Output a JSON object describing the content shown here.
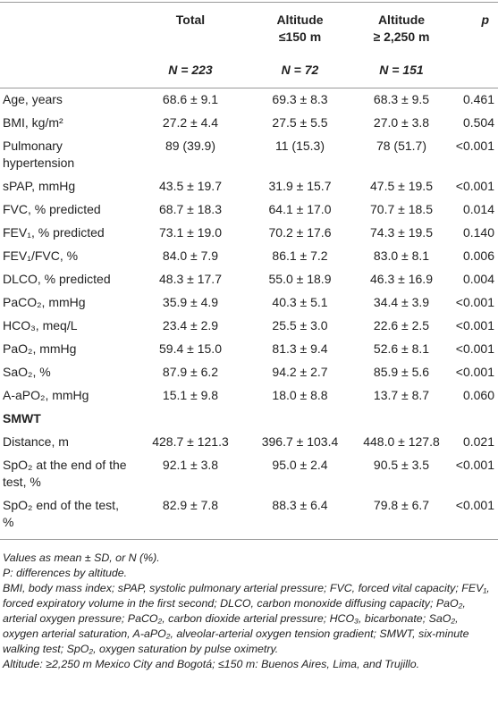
{
  "header": {
    "columns": [
      {
        "title": "Total",
        "n": "N = 223"
      },
      {
        "title": "Altitude",
        "subtitle": "≤150 m",
        "n": "N = 72"
      },
      {
        "title": "Altitude",
        "subtitle": "≥ 2,250 m",
        "n": "N = 151"
      },
      {
        "title": "p"
      }
    ]
  },
  "rows": [
    {
      "label": "Age, years",
      "cells": [
        "68.6 ± 9.1",
        "69.3 ± 8.3",
        "68.3 ± 9.5",
        "0.461"
      ]
    },
    {
      "label": "BMI, kg/m²",
      "cells": [
        "27.2 ± 4.4",
        "27.5 ± 5.5",
        "27.0 ± 3.8",
        "0.504"
      ]
    },
    {
      "label": "Pulmonary hypertension",
      "cells": [
        "89 (39.9)",
        "11 (15.3)",
        "78 (51.7)",
        "<0.001"
      ]
    },
    {
      "label": "sPAP, mmHg",
      "cells": [
        "43.5 ± 19.7",
        "31.9 ± 15.7",
        "47.5 ± 19.5",
        "<0.001"
      ]
    },
    {
      "label": "FVC, % predicted",
      "cells": [
        "68.7 ± 18.3",
        "64.1 ± 17.0",
        "70.7 ± 18.5",
        "0.014"
      ]
    },
    {
      "label": "FEV₁, % predicted",
      "cells": [
        "73.1 ± 19.0",
        "70.2 ± 17.6",
        "74.3 ± 19.5",
        "0.140"
      ]
    },
    {
      "label": "FEV₁/FVC, %",
      "cells": [
        "84.0 ± 7.9",
        "86.1 ± 7.2",
        "83.0 ± 8.1",
        "0.006"
      ]
    },
    {
      "label": "DLCO, % predicted",
      "cells": [
        "48.3 ± 17.7",
        "55.0 ± 18.9",
        "46.3 ± 16.9",
        "0.004"
      ]
    },
    {
      "label": "PaCO₂, mmHg",
      "cells": [
        "35.9 ± 4.9",
        "40.3 ± 5.1",
        "34.4 ± 3.9",
        "<0.001"
      ]
    },
    {
      "label": "HCO₃, meq/L",
      "cells": [
        "23.4 ± 2.9",
        "25.5 ± 3.0",
        "22.6 ± 2.5",
        "<0.001"
      ]
    },
    {
      "label": "PaO₂, mmHg",
      "cells": [
        "59.4 ± 15.0",
        "81.3 ± 9.4",
        "52.6 ± 8.1",
        "<0.001"
      ]
    },
    {
      "label": "SaO₂, %",
      "cells": [
        "87.9 ± 6.2",
        "94.2 ± 2.7",
        "85.9 ± 5.6",
        "<0.001"
      ]
    },
    {
      "label": "A-aPO₂, mmHg",
      "cells": [
        "15.1 ± 9.8",
        "18.0 ± 8.8",
        "13.7 ± 8.7",
        "0.060"
      ]
    },
    {
      "section": "SMWT"
    },
    {
      "label": "Distance, m",
      "cells": [
        "428.7 ± 121.3",
        "396.7 ± 103.4",
        "448.0 ± 127.8",
        "0.021"
      ]
    },
    {
      "label": "SpO₂ at the end of the test, %",
      "cells": [
        "92.1 ± 3.8",
        "95.0 ± 2.4",
        "90.5 ± 3.5",
        "<0.001"
      ]
    },
    {
      "label": "SpO₂ end of the test, %",
      "cells": [
        "82.9 ± 7.8",
        "88.3 ± 6.4",
        "79.8 ± 6.7",
        "<0.001"
      ]
    }
  ],
  "footnotes": [
    "Values as mean ± SD, or N (%).",
    "P: differences by altitude.",
    "BMI, body mass index; sPAP, systolic pulmonary arterial pressure; FVC, forced vital capacity; FEV₁, forced expiratory volume in the first second; DLCO, carbon monoxide diffusing capacity; PaO₂, arterial oxygen pressure; PaCO₂, carbon dioxide arterial pressure; HCO₃, bicarbonate; SaO₂, oxygen arterial saturation, A-aPO₂, alveolar-arterial oxygen tension gradient; SMWT, six-minute walking test; SpO₂, oxygen saturation by pulse oximetry.",
    "Altitude: ≥2,250 m Mexico City and Bogotá; ≤150 m: Buenos Aires, Lima, and Trujillo."
  ]
}
